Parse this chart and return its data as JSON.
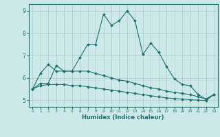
{
  "xlabel": "Humidex (Indice chaleur)",
  "xlim": [
    -0.5,
    23.5
  ],
  "ylim": [
    4.7,
    9.3
  ],
  "yticks": [
    5,
    6,
    7,
    8,
    9
  ],
  "xticks": [
    0,
    1,
    2,
    3,
    4,
    5,
    6,
    7,
    8,
    9,
    10,
    11,
    12,
    13,
    14,
    15,
    16,
    17,
    18,
    19,
    20,
    21,
    22,
    23
  ],
  "background_color": "#cde8e8",
  "grid_color": "#aecece",
  "line_color": "#1a6e6e",
  "series": [
    {
      "x": [
        0,
        1,
        2,
        3,
        4,
        5,
        6,
        7,
        8,
        9,
        10,
        11,
        12,
        13,
        14,
        15,
        16,
        17,
        18,
        19,
        20,
        21,
        22,
        23
      ],
      "y": [
        5.5,
        6.2,
        6.6,
        6.3,
        6.3,
        6.3,
        6.9,
        7.5,
        7.5,
        8.85,
        8.35,
        8.55,
        9.0,
        8.55,
        7.05,
        7.55,
        7.15,
        6.5,
        5.95,
        5.7,
        5.65,
        5.25,
        5.05,
        5.25
      ]
    },
    {
      "x": [
        0,
        1,
        2,
        3,
        4,
        5,
        6,
        7,
        8,
        9,
        10,
        11,
        12,
        13,
        14,
        15,
        16,
        17,
        18,
        19,
        20,
        21,
        22,
        23
      ],
      "y": [
        5.5,
        5.75,
        5.75,
        6.55,
        6.3,
        6.3,
        6.3,
        6.3,
        6.2,
        6.1,
        6.0,
        5.9,
        5.85,
        5.75,
        5.65,
        5.55,
        5.5,
        5.4,
        5.35,
        5.3,
        5.25,
        5.15,
        5.05,
        5.25
      ]
    },
    {
      "x": [
        0,
        1,
        2,
        3,
        4,
        5,
        6,
        7,
        8,
        9,
        10,
        11,
        12,
        13,
        14,
        15,
        16,
        17,
        18,
        19,
        20,
        21,
        22,
        23
      ],
      "y": [
        5.5,
        5.65,
        5.7,
        5.7,
        5.7,
        5.65,
        5.65,
        5.6,
        5.55,
        5.5,
        5.45,
        5.4,
        5.35,
        5.3,
        5.25,
        5.2,
        5.15,
        5.1,
        5.07,
        5.05,
        5.02,
        5.0,
        4.98,
        5.25
      ]
    }
  ]
}
